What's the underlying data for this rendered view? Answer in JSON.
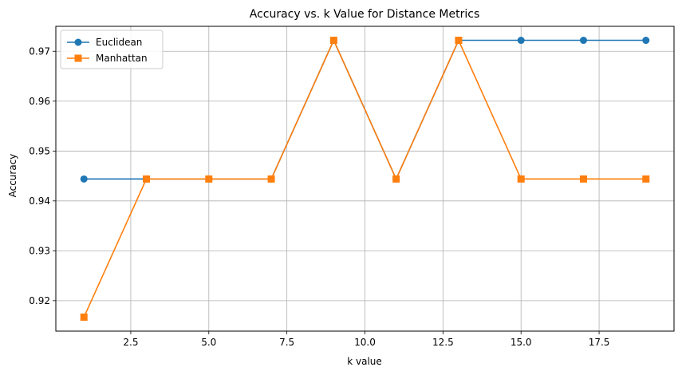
{
  "chart_data": {
    "type": "line",
    "title": "Accuracy vs. k Value for Distance Metrics",
    "xlabel": "k value",
    "ylabel": "Accuracy",
    "x": [
      1,
      3,
      5,
      7,
      9,
      11,
      13,
      15,
      17,
      19
    ],
    "series": [
      {
        "name": "Euclidean",
        "values": [
          0.9444,
          0.9444,
          0.9444,
          0.9444,
          0.9722,
          0.9444,
          0.9722,
          0.9722,
          0.9722,
          0.9722
        ],
        "color": "#1f77b4",
        "marker": "circle"
      },
      {
        "name": "Manhattan",
        "values": [
          0.9167,
          0.9444,
          0.9444,
          0.9444,
          0.9722,
          0.9444,
          0.9722,
          0.9444,
          0.9444,
          0.9444
        ],
        "color": "#ff7f0e",
        "marker": "square"
      }
    ],
    "xlim": [
      0.1,
      19.9
    ],
    "ylim": [
      0.9139,
      0.975
    ],
    "xticks": [
      "2.5",
      "5.0",
      "7.5",
      "10.0",
      "12.5",
      "15.0",
      "17.5"
    ],
    "yticks": [
      "0.92",
      "0.93",
      "0.94",
      "0.95",
      "0.96",
      "0.97"
    ],
    "grid": true,
    "legend_position": "upper-left"
  }
}
